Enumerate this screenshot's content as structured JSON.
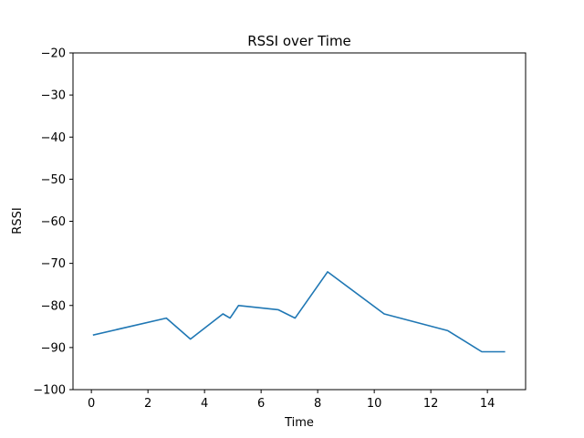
{
  "chart_data": {
    "type": "line",
    "title": "RSSI over Time",
    "xlabel": "Time",
    "ylabel": "RSSI",
    "xlim": [
      -0.65,
      15.35
    ],
    "ylim": [
      -100,
      -20
    ],
    "xticks": [
      0,
      2,
      4,
      6,
      8,
      10,
      12,
      14
    ],
    "yticks": [
      -100,
      -90,
      -80,
      -70,
      -60,
      -50,
      -40,
      -30,
      -20
    ],
    "ytick_labels": [
      "−100",
      "−90",
      "−80",
      "−70",
      "−60",
      "−50",
      "−40",
      "−30",
      "−20"
    ],
    "grid": false,
    "series": [
      {
        "color": "#1f77b4",
        "x": [
          0.08,
          2.65,
          3.5,
          4.65,
          4.9,
          5.2,
          6.6,
          7.2,
          8.35,
          10.35,
          12.6,
          13.8,
          14.6
        ],
        "y": [
          -87,
          -83,
          -88,
          -82,
          -83,
          -80,
          -81,
          -83,
          -72,
          -82,
          -86,
          -91,
          -91
        ]
      }
    ]
  }
}
